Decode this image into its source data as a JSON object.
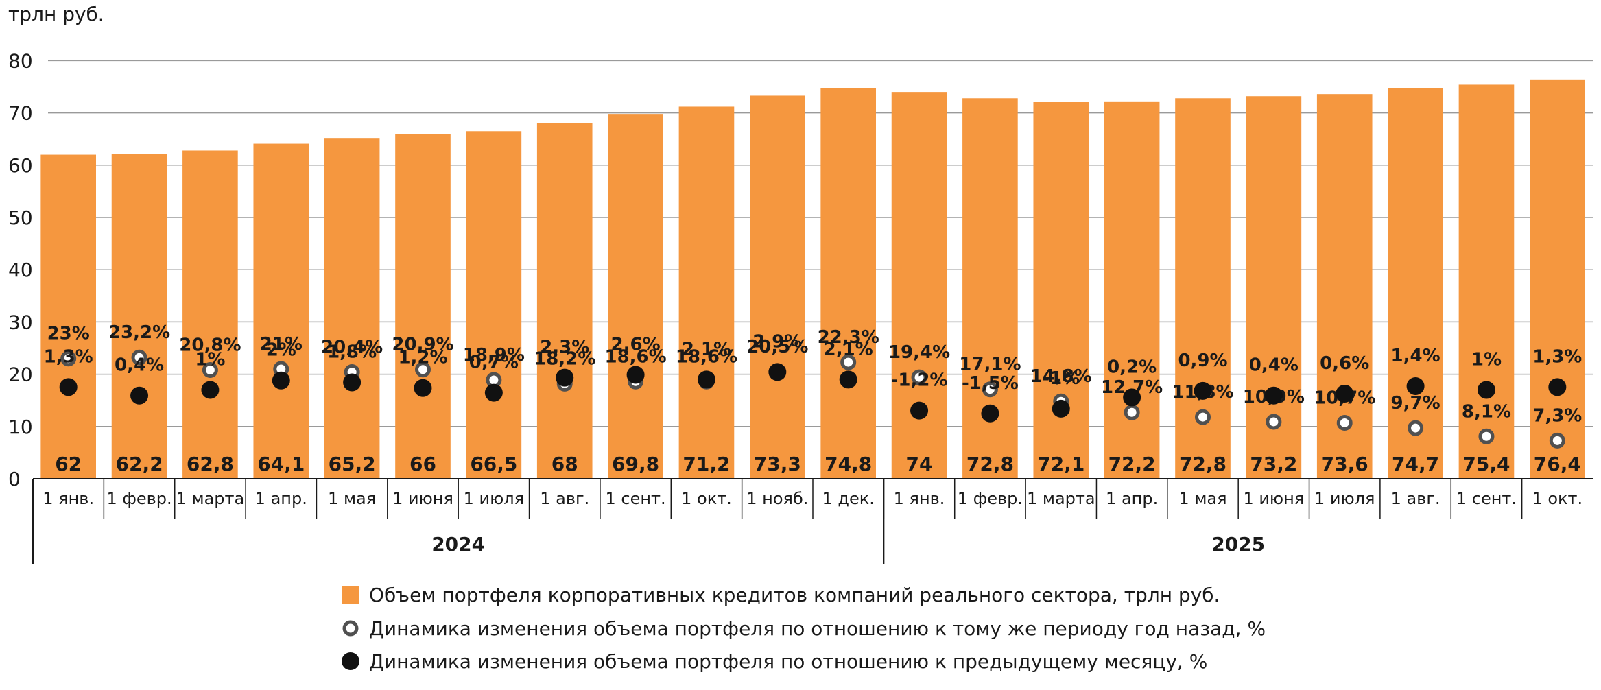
{
  "chart_data": {
    "type": "bar",
    "unit_label": "трлн руб.",
    "ylim": [
      0,
      80
    ],
    "yticks": [
      0,
      10,
      20,
      30,
      40,
      50,
      60,
      70,
      80
    ],
    "grid": true,
    "categories": [
      "1 янв.",
      "1 февр.",
      "1 марта",
      "1 апр.",
      "1 мая",
      "1 июня",
      "1 июля",
      "1 авг.",
      "1 сент.",
      "1 окт.",
      "1 нояб.",
      "1 дек.",
      "1 янв.",
      "1 февр.",
      "1 марта",
      "1 апр.",
      "1 мая",
      "1 июня",
      "1 июля",
      "1 авг.",
      "1 сент.",
      "1 окт."
    ],
    "year_groups": [
      {
        "label": "2024",
        "count": 12
      },
      {
        "label": "2025",
        "count": 10
      }
    ],
    "series": [
      {
        "name": "Объем портфеля корпоративных кредитов компаний реального сектора, трлн руб.",
        "kind": "bar",
        "color": "#F5973F",
        "values": [
          62,
          62.2,
          62.8,
          64.1,
          65.2,
          66,
          66.5,
          68,
          69.8,
          71.2,
          73.3,
          74.8,
          74,
          72.8,
          72.1,
          72.2,
          72.8,
          73.2,
          73.6,
          74.7,
          75.4,
          76.4
        ],
        "labels": [
          "62",
          "62,2",
          "62,8",
          "64,1",
          "65,2",
          "66",
          "66,5",
          "68",
          "69,8",
          "71,2",
          "73,3",
          "74,8",
          "74",
          "72,8",
          "72,1",
          "72,2",
          "72,8",
          "73,2",
          "73,6",
          "74,7",
          "75,4",
          "76,4"
        ]
      },
      {
        "name": "Динамика изменения объема портфеля по отношению к тому же периоду год назад, %",
        "kind": "marker-hollow",
        "values": [
          23,
          23.2,
          20.8,
          21,
          20.4,
          20.9,
          18.9,
          18.2,
          18.6,
          18.6,
          20.5,
          22.3,
          19.4,
          17.1,
          14.8,
          12.7,
          11.8,
          10.9,
          10.7,
          9.7,
          8.1,
          7.3
        ],
        "labels": [
          "23%",
          "23,2%",
          "20,8%",
          "21%",
          "20,4%",
          "20,9%",
          "18,9%",
          "18,2%",
          "18,6%",
          "18,6%",
          "20,5%",
          "22,3%",
          "19,4%",
          "17,1%",
          "14,8%",
          "12,7%",
          "11,8%",
          "10,9%",
          "10,7%",
          "9,7%",
          "8,1%",
          "7,3%"
        ]
      },
      {
        "name": "Динамика изменения объема портфеля по отношению к предыдущему месяцу, %",
        "kind": "marker-filled",
        "values": [
          1.3,
          0.4,
          1,
          2,
          1.8,
          1.2,
          0.7,
          2.3,
          2.6,
          2.1,
          2.9,
          2.1,
          -1.2,
          -1.5,
          -1,
          0.2,
          0.9,
          0.4,
          0.6,
          1.4,
          1,
          1.3
        ],
        "labels": [
          "1,3%",
          "0,4%",
          "1%",
          "2%",
          "1,8%",
          "1,2%",
          "0,7%",
          "2,3%",
          "2,6%",
          "2,1%",
          "2,9%",
          "2,1%",
          "-1,2%",
          "-1,5%",
          "-1%",
          "0,2%",
          "0,9%",
          "0,4%",
          "0,6%",
          "1,4%",
          "1%",
          "1,3%"
        ]
      }
    ],
    "legend": {
      "placement": "bottom-center",
      "items": [
        {
          "kind": "bar",
          "label": "Объем портфеля корпоративных кредитов компаний реального сектора, трлн руб."
        },
        {
          "kind": "marker-hollow",
          "label": "Динамика изменения объема портфеля по отношению к тому же периоду год назад, %"
        },
        {
          "kind": "marker-filled",
          "label": "Динамика изменения объема портфеля по отношению к предыдущему месяцу, %"
        }
      ]
    },
    "colors": {
      "bar": "#F5973F",
      "marker_ring": "#505050",
      "marker_fill": "#111111",
      "text": "#1a1a1a"
    }
  }
}
